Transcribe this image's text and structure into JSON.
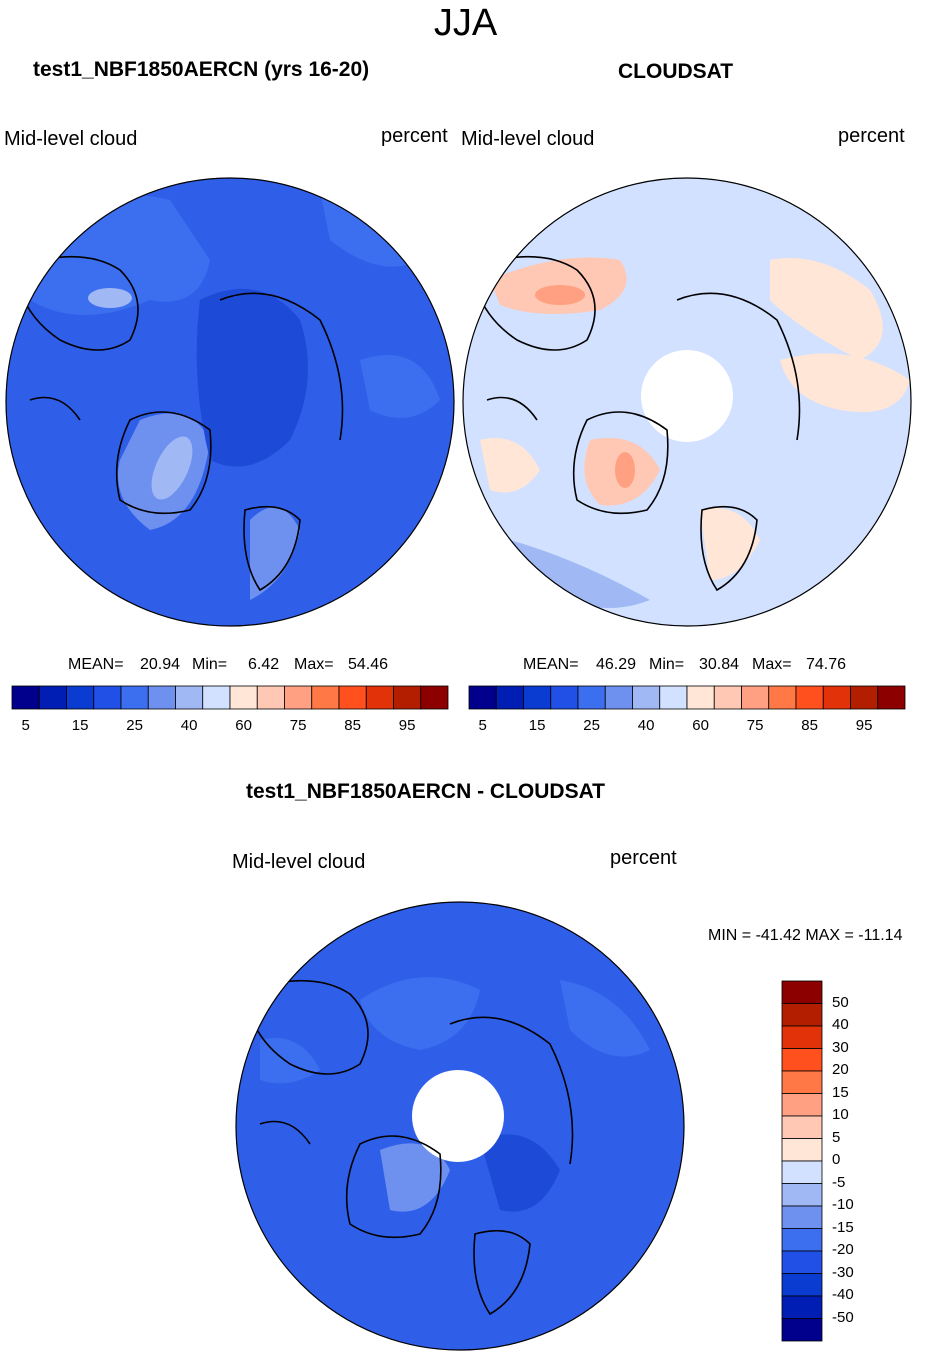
{
  "season": "JJA",
  "colors": {
    "levels_abs": [
      "#00008c",
      "#001eb4",
      "#0a3cd2",
      "#2050e6",
      "#3c6ef0",
      "#6e91f0",
      "#a0b9f5",
      "#d2e1ff",
      "#ffe6d7",
      "#ffc8b4",
      "#ffa082",
      "#ff7846",
      "#ff501e",
      "#e1320a",
      "#b41e00",
      "#8c0000"
    ],
    "levels_diff": [
      "#00008c",
      "#001eb4",
      "#0a3cd2",
      "#2050e6",
      "#3c6ef0",
      "#6e91f0",
      "#a0b9f5",
      "#d2e1ff",
      "#ffe6d7",
      "#ffc8b4",
      "#ffa082",
      "#ff7846",
      "#ff501e",
      "#e1320a",
      "#b41e00",
      "#8c0000"
    ]
  },
  "chart_data": [
    {
      "type": "heatmap",
      "projection": "north polar stereographic",
      "title": "test1_NBF1850AERCN (yrs 16-20)",
      "variable": "Mid-level cloud",
      "units": "percent",
      "stats": {
        "mean_label": "MEAN=",
        "mean": "20.94",
        "min_label": "Min=",
        "min": "6.42",
        "max_label": "Max=",
        "max": "54.46"
      },
      "colorbar_ticks": [
        "5",
        "15",
        "25",
        "40",
        "60",
        "75",
        "85",
        "95"
      ],
      "dominant_value_range": [
        10,
        25
      ]
    },
    {
      "type": "heatmap",
      "projection": "north polar stereographic",
      "title": "CLOUDSAT",
      "variable": "Mid-level cloud",
      "units": "percent",
      "stats": {
        "mean_label": "MEAN=",
        "mean": "46.29",
        "min_label": "Min=",
        "min": "30.84",
        "max_label": "Max=",
        "max": "74.76"
      },
      "colorbar_ticks": [
        "5",
        "15",
        "25",
        "40",
        "60",
        "75",
        "85",
        "95"
      ],
      "dominant_value_range": [
        40,
        60
      ]
    },
    {
      "type": "heatmap",
      "projection": "north polar stereographic",
      "title": "test1_NBF1850AERCN - CLOUDSAT",
      "variable": "Mid-level cloud",
      "units": "percent",
      "stats_text": "MIN = -41.42 MAX = -11.14",
      "colorbar_ticks": [
        "50",
        "40",
        "30",
        "20",
        "15",
        "10",
        "5",
        "0",
        "-5",
        "-10",
        "-15",
        "-20",
        "-30",
        "-40",
        "-50"
      ],
      "dominant_value_range": [
        -30,
        -20
      ]
    }
  ]
}
